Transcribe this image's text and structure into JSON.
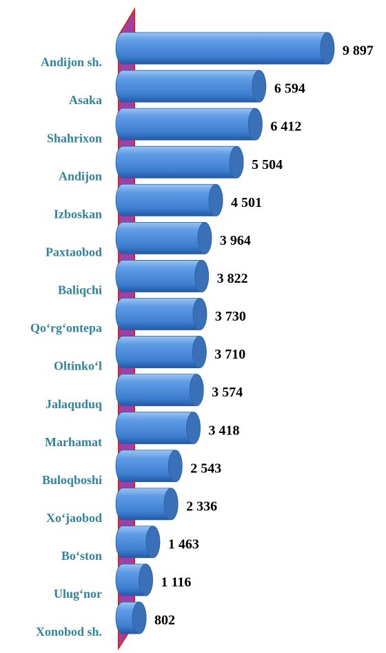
{
  "chart_data": {
    "type": "bar",
    "orientation": "horizontal",
    "categories": [
      "Andijon sh.",
      "Asaka",
      "Shahrixon",
      "Andijon",
      "Izboskan",
      "Paxtaobod",
      "Baliqchi",
      "Qo‘rg‘ontepa",
      "Oltinko‘l",
      "Jalaquduq",
      "Marhamat",
      "Buloqboshi",
      "Xo‘jaobod",
      "Bo‘ston",
      "Ulug‘nor",
      "Xonobod sh."
    ],
    "values": [
      9897,
      6594,
      6412,
      5504,
      4501,
      3964,
      3822,
      3730,
      3710,
      3574,
      3418,
      2543,
      2336,
      1463,
      1116,
      802
    ],
    "value_labels": [
      "9 897",
      "6 594",
      "6 412",
      "5 504",
      "4 501",
      "3 964",
      "3 822",
      "3 730",
      "3 710",
      "3 574",
      "3 418",
      "2 543",
      "2 336",
      "1 463",
      "1 116",
      "802"
    ],
    "color": "#4f8fdc",
    "xlim": [
      0,
      10000
    ]
  }
}
